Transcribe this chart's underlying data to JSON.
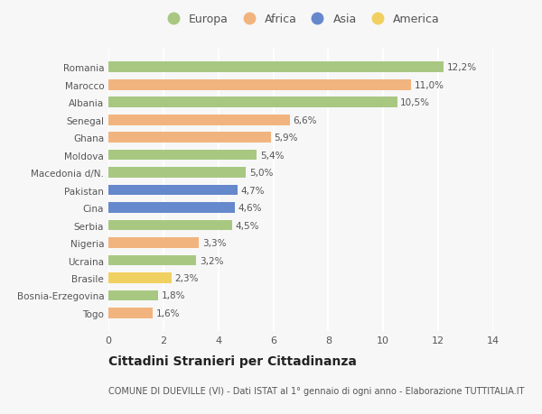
{
  "categories": [
    "Togo",
    "Bosnia-Erzegovina",
    "Brasile",
    "Ucraina",
    "Nigeria",
    "Serbia",
    "Cina",
    "Pakistan",
    "Macedonia d/N.",
    "Moldova",
    "Ghana",
    "Senegal",
    "Albania",
    "Marocco",
    "Romania"
  ],
  "values": [
    1.6,
    1.8,
    2.3,
    3.2,
    3.3,
    4.5,
    4.6,
    4.7,
    5.0,
    5.4,
    5.9,
    6.6,
    10.5,
    11.0,
    12.2
  ],
  "labels": [
    "1,6%",
    "1,8%",
    "2,3%",
    "3,2%",
    "3,3%",
    "4,5%",
    "4,6%",
    "4,7%",
    "5,0%",
    "5,4%",
    "5,9%",
    "6,6%",
    "10,5%",
    "11,0%",
    "12,2%"
  ],
  "continents": [
    "Africa",
    "Europa",
    "America",
    "Europa",
    "Africa",
    "Europa",
    "Asia",
    "Asia",
    "Europa",
    "Europa",
    "Africa",
    "Africa",
    "Europa",
    "Africa",
    "Europa"
  ],
  "continent_colors": {
    "Europa": "#a8c882",
    "Africa": "#f2b47e",
    "Asia": "#6688cc",
    "America": "#f0d060"
  },
  "legend_order": [
    "Europa",
    "Africa",
    "Asia",
    "America"
  ],
  "title": "Cittadini Stranieri per Cittadinanza",
  "subtitle": "COMUNE DI DUEVILLE (VI) - Dati ISTAT al 1° gennaio di ogni anno - Elaborazione TUTTITALIA.IT",
  "xlim": [
    0,
    14
  ],
  "xticks": [
    0,
    2,
    4,
    6,
    8,
    10,
    12,
    14
  ],
  "background_color": "#f7f7f7",
  "grid_color": "#ffffff",
  "bar_height": 0.6,
  "label_fontsize": 7.5,
  "ytick_fontsize": 7.5,
  "xtick_fontsize": 8,
  "title_fontsize": 10,
  "subtitle_fontsize": 7,
  "legend_fontsize": 9
}
